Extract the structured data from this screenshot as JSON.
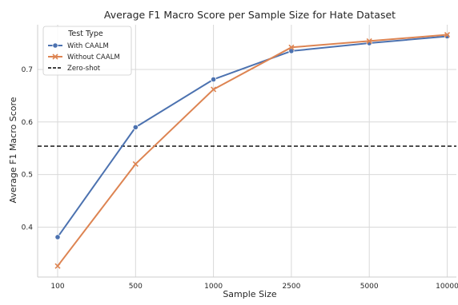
{
  "chart_data": {
    "type": "line",
    "title": "Average F1 Macro Score per Sample Size for Hate Dataset",
    "xlabel": "Sample Size",
    "ylabel": "Average F1 Macro Score",
    "categories": [
      "100",
      "500",
      "1000",
      "2500",
      "5000",
      "10000"
    ],
    "ylim": [
      0.305,
      0.785
    ],
    "yticks": [
      0.4,
      0.5,
      0.6,
      0.7
    ],
    "grid": true,
    "legend": {
      "title": "Test Type",
      "placement": "top-left"
    },
    "series": [
      {
        "name": "With CAALM",
        "values": [
          0.381,
          0.59,
          0.681,
          0.735,
          0.75,
          0.763
        ],
        "color": "#4c72b0",
        "marker": "circle"
      },
      {
        "name": "Without CAALM",
        "values": [
          0.326,
          0.52,
          0.662,
          0.742,
          0.754,
          0.766
        ],
        "color": "#dd8452",
        "marker": "x"
      }
    ],
    "reference_lines": [
      {
        "name": "Zero-shot",
        "value": 0.554,
        "color": "#000000",
        "style": "dashed"
      }
    ]
  }
}
